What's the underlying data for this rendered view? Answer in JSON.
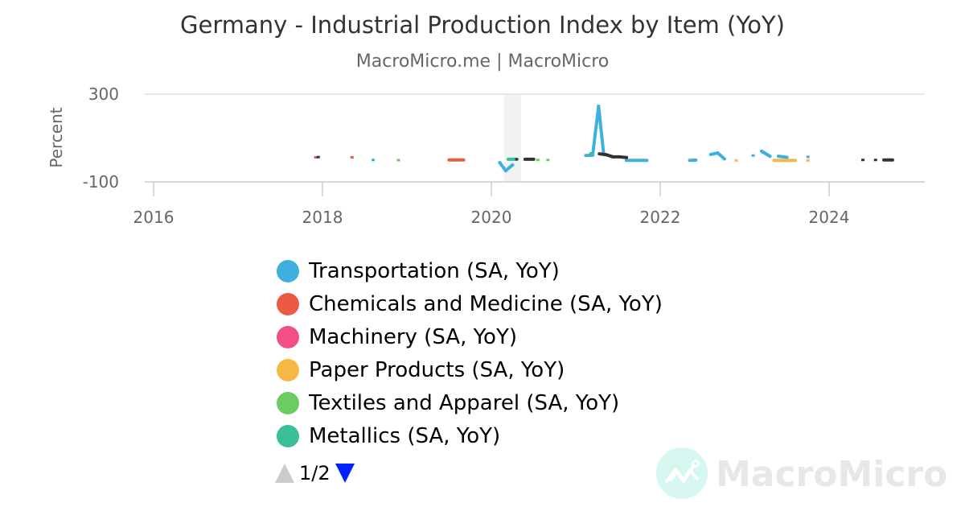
{
  "chart_data": {
    "type": "line",
    "title": "Germany - Industrial Production Index by Item (YoY)",
    "subtitle": "MacroMicro.me | MacroMicro",
    "ylabel": "Percent",
    "ylim": [
      -100,
      300
    ],
    "yticks": [
      "300",
      "-100"
    ],
    "xlim": [
      2015.9,
      2025.4
    ],
    "xticks": [
      "2016",
      "2018",
      "2020",
      "2022",
      "2024"
    ],
    "grid": true,
    "shaded_range": [
      2020.15,
      2020.35
    ],
    "legend_position": "bottom",
    "series": [
      {
        "name": "Transportation (SA, YoY)",
        "color": "#3eb0de",
        "points": [
          [
            2018.6,
            0
          ],
          [
            2020.1,
            -12
          ],
          [
            2020.17,
            -49
          ],
          [
            2020.25,
            -23
          ],
          [
            2021.12,
            20
          ],
          [
            2021.2,
            22
          ],
          [
            2021.27,
            245
          ],
          [
            2021.33,
            28
          ],
          [
            2021.6,
            -2
          ],
          [
            2021.68,
            -2
          ],
          [
            2021.76,
            -2
          ],
          [
            2021.84,
            -2
          ],
          [
            2022.35,
            -2
          ],
          [
            2022.42,
            -1
          ],
          [
            2022.6,
            25
          ],
          [
            2022.68,
            32
          ],
          [
            2022.76,
            5
          ],
          [
            2023.1,
            20
          ],
          [
            2023.2,
            40
          ],
          [
            2023.3,
            17
          ],
          [
            2023.4,
            17
          ],
          [
            2023.5,
            12
          ],
          [
            2023.75,
            14
          ]
        ]
      },
      {
        "name": "Chemicals and Medicine (SA, YoY)",
        "color": "#eb5a45",
        "points": [
          [
            2018.35,
            12
          ],
          [
            2019.5,
            0
          ],
          [
            2019.58,
            0
          ],
          [
            2019.67,
            0
          ]
        ]
      },
      {
        "name": "Machinery (SA, YoY)",
        "color": "#f04f88",
        "points": [
          [
            2017.92,
            12
          ]
        ]
      },
      {
        "name": "Paper Products (SA, YoY)",
        "color": "#f6b944",
        "points": [
          [
            2022.9,
            -2
          ],
          [
            2023.35,
            -2
          ],
          [
            2023.43,
            -2
          ],
          [
            2023.51,
            -2
          ],
          [
            2023.6,
            -2
          ],
          [
            2023.75,
            -2
          ]
        ]
      },
      {
        "name": "Textiles and Apparel (SA, YoY)",
        "color": "#6ccb61",
        "points": [
          [
            2018.9,
            -1
          ],
          [
            2020.55,
            0
          ],
          [
            2020.67,
            0
          ]
        ]
      },
      {
        "name": "Metallics (SA, YoY)",
        "color": "#3abf98",
        "points": [
          [
            2020.2,
            3
          ],
          [
            2020.3,
            3
          ],
          [
            2021.18,
            30
          ]
        ]
      },
      {
        "name": "",
        "color": "#333333",
        "points": [
          [
            2017.95,
            13
          ],
          [
            2020.3,
            3
          ],
          [
            2020.4,
            3
          ],
          [
            2020.5,
            3
          ],
          [
            2021.28,
            28
          ],
          [
            2021.36,
            24
          ],
          [
            2021.44,
            14
          ],
          [
            2021.52,
            14
          ],
          [
            2021.6,
            11
          ],
          [
            2024.4,
            0
          ],
          [
            2024.55,
            0
          ],
          [
            2024.65,
            0
          ],
          [
            2024.75,
            0
          ]
        ]
      }
    ]
  },
  "legend": {
    "page": "1/2"
  },
  "watermark": "MacroMicro"
}
